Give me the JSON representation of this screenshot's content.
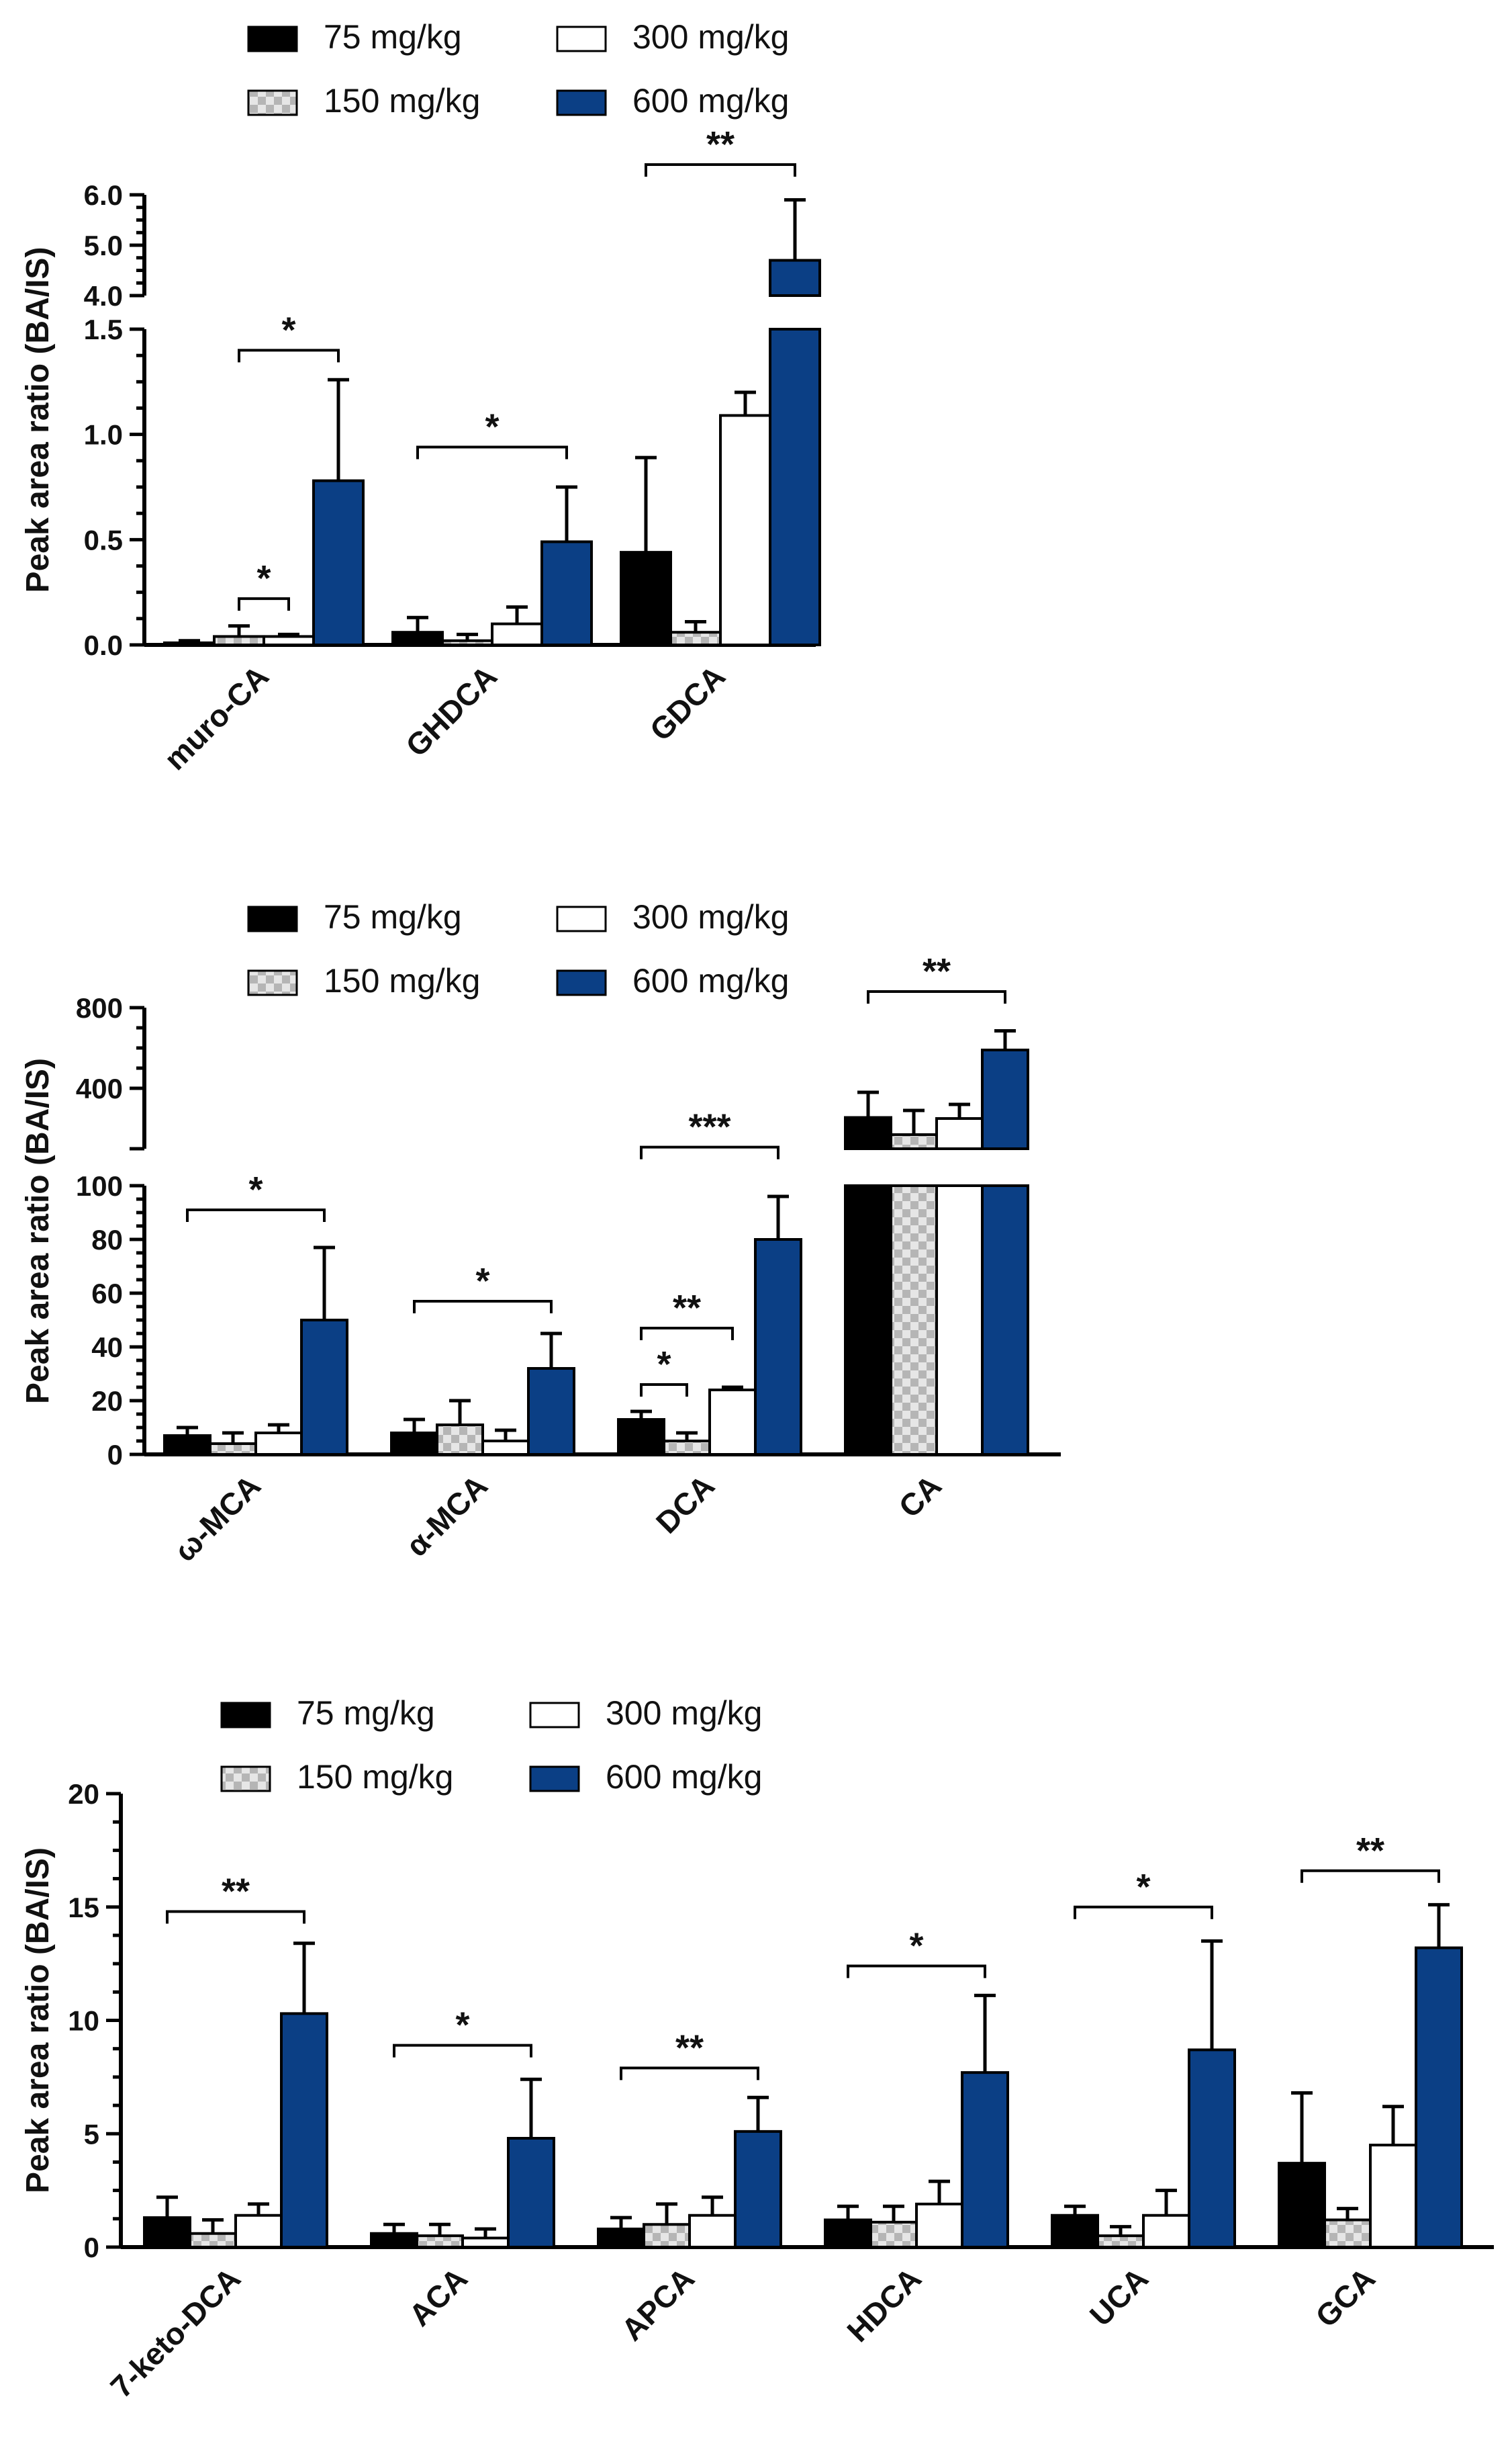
{
  "colors": {
    "c75": "#000000",
    "c300": "#ffffff",
    "c600": "#0b3f85",
    "c150_a": "#bfbfbf",
    "c150_b": "#e6e6e6"
  },
  "legend": [
    {
      "name": "75 mg/kg",
      "key": "c75"
    },
    {
      "name": "150 mg/kg",
      "key": "c150"
    },
    {
      "name": "300 mg/kg",
      "key": "c300"
    },
    {
      "name": "600 mg/kg",
      "key": "c600"
    }
  ],
  "chart_data": [
    {
      "type": "bar",
      "ylabel": "Peak area ratio (BA/IS)",
      "broken_axis": true,
      "lower": {
        "ylim": [
          0,
          1.5
        ],
        "ticks": [
          0.0,
          0.5,
          1.0,
          1.5
        ],
        "tick_labels": [
          "0.0",
          "0.5",
          "1.0",
          "1.5"
        ]
      },
      "upper": {
        "ylim": [
          4.0,
          6.0
        ],
        "ticks": [
          4.0,
          5.0,
          6.0
        ],
        "tick_labels": [
          "4.0",
          "5.0",
          "6.0"
        ]
      },
      "categories": [
        "muro-CA",
        "GHDCA",
        "GDCA"
      ],
      "series": [
        {
          "name": "75 mg/kg",
          "values": [
            0.01,
            0.06,
            0.44
          ],
          "errors": [
            0.01,
            0.07,
            0.45
          ]
        },
        {
          "name": "150 mg/kg",
          "values": [
            0.04,
            0.02,
            0.06
          ],
          "errors": [
            0.05,
            0.03,
            0.05
          ]
        },
        {
          "name": "300 mg/kg",
          "values": [
            0.04,
            0.1,
            1.09
          ],
          "errors": [
            0.01,
            0.08,
            0.11
          ]
        },
        {
          "name": "600 mg/kg",
          "values": [
            0.78,
            0.49,
            4.7
          ],
          "errors": [
            0.48,
            0.26,
            1.2
          ]
        }
      ],
      "significance": [
        {
          "cat": 0,
          "from": 1,
          "to": 3,
          "label": "*",
          "y": 1.4
        },
        {
          "cat": 0,
          "from": 1,
          "to": 2,
          "label": "*",
          "y": 0.22
        },
        {
          "cat": 1,
          "from": 0,
          "to": 3,
          "label": "*",
          "y": 0.94
        },
        {
          "cat": 2,
          "from": 0,
          "to": 3,
          "label": "**",
          "y": 6.6
        }
      ]
    },
    {
      "type": "bar",
      "ylabel": "Peak area ratio (BA/IS)",
      "broken_axis": true,
      "lower": {
        "ylim": [
          0,
          100
        ],
        "ticks": [
          0,
          20,
          40,
          60,
          80,
          100
        ],
        "tick_labels": [
          "0",
          "20",
          "40",
          "60",
          "80",
          "100"
        ]
      },
      "upper": {
        "ylim": [
          100,
          800
        ],
        "ticks": [
          400,
          800
        ],
        "tick_labels": [
          "400",
          "800"
        ]
      },
      "categories": [
        "ω-MCA",
        "α-MCA",
        "DCA",
        "CA"
      ],
      "series": [
        {
          "name": "75 mg/kg",
          "values": [
            7,
            8,
            13,
            255
          ],
          "errors": [
            3,
            5,
            3,
            125
          ]
        },
        {
          "name": "150 mg/kg",
          "values": [
            4,
            11,
            5,
            170
          ],
          "errors": [
            4,
            9,
            3,
            120
          ]
        },
        {
          "name": "300 mg/kg",
          "values": [
            8,
            5,
            24,
            250
          ],
          "errors": [
            3,
            4,
            1,
            70
          ]
        },
        {
          "name": "600 mg/kg",
          "values": [
            50,
            32,
            80,
            590
          ],
          "errors": [
            27,
            13,
            16,
            95
          ]
        }
      ],
      "significance": [
        {
          "cat": 0,
          "from": 0,
          "to": 3,
          "label": "*",
          "y": 91
        },
        {
          "cat": 1,
          "from": 0,
          "to": 3,
          "label": "*",
          "y": 57
        },
        {
          "cat": 2,
          "from": 0,
          "to": 3,
          "label": "***",
          "y": 108
        },
        {
          "cat": 2,
          "from": 0,
          "to": 2,
          "label": "**",
          "y": 47
        },
        {
          "cat": 2,
          "from": 0,
          "to": 1,
          "label": "*",
          "y": 26
        },
        {
          "cat": 3,
          "from": 0,
          "to": 3,
          "label": "**",
          "y": 880
        }
      ]
    },
    {
      "type": "bar",
      "ylabel": "Peak area ratio (BA/IS)",
      "broken_axis": false,
      "lower": {
        "ylim": [
          0,
          20
        ],
        "ticks": [
          0,
          5,
          10,
          15,
          20
        ],
        "tick_labels": [
          "0",
          "5",
          "10",
          "15",
          "20"
        ]
      },
      "categories": [
        "7-keto-DCA",
        "ACA",
        "APCA",
        "HDCA",
        "UCA",
        "GCA"
      ],
      "series": [
        {
          "name": "75 mg/kg",
          "values": [
            1.3,
            0.6,
            0.8,
            1.2,
            1.4,
            3.7
          ],
          "errors": [
            0.9,
            0.4,
            0.5,
            0.6,
            0.4,
            3.1
          ]
        },
        {
          "name": "150 mg/kg",
          "values": [
            0.6,
            0.5,
            1.0,
            1.1,
            0.5,
            1.2
          ],
          "errors": [
            0.6,
            0.5,
            0.9,
            0.7,
            0.4,
            0.5
          ]
        },
        {
          "name": "300 mg/kg",
          "values": [
            1.4,
            0.4,
            1.4,
            1.9,
            1.4,
            4.5
          ],
          "errors": [
            0.5,
            0.4,
            0.8,
            1.0,
            1.1,
            1.7
          ]
        },
        {
          "name": "600 mg/kg",
          "values": [
            10.3,
            4.8,
            5.1,
            7.7,
            8.7,
            13.2
          ],
          "errors": [
            3.1,
            2.6,
            1.5,
            3.4,
            4.8,
            1.9
          ]
        }
      ],
      "significance": [
        {
          "cat": 0,
          "from": 0,
          "to": 3,
          "label": "**",
          "y": 14.8
        },
        {
          "cat": 1,
          "from": 0,
          "to": 3,
          "label": "*",
          "y": 8.9
        },
        {
          "cat": 2,
          "from": 0,
          "to": 3,
          "label": "**",
          "y": 7.9
        },
        {
          "cat": 3,
          "from": 0,
          "to": 3,
          "label": "*",
          "y": 12.4
        },
        {
          "cat": 4,
          "from": 0,
          "to": 3,
          "label": "*",
          "y": 15.0
        },
        {
          "cat": 5,
          "from": 0,
          "to": 3,
          "label": "**",
          "y": 16.6
        }
      ]
    }
  ]
}
